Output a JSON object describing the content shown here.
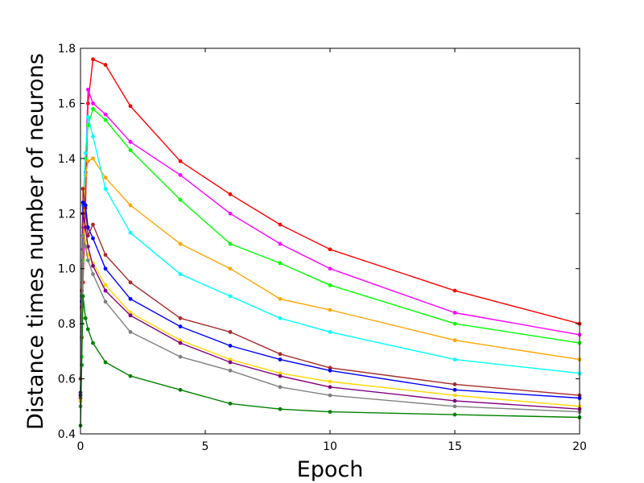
{
  "chart_data": {
    "type": "line",
    "title": "",
    "xlabel": "Epoch",
    "ylabel": "Distance times number of neurons",
    "xlim": [
      0,
      20
    ],
    "ylim": [
      0.4,
      1.8
    ],
    "xticks": [
      0,
      5,
      10,
      15,
      20
    ],
    "xtick_labels": [
      "0",
      "5",
      "10",
      "15",
      "20"
    ],
    "yticks": [
      0.4,
      0.6,
      0.8,
      1.0,
      1.2,
      1.4,
      1.6,
      1.8
    ],
    "ytick_labels": [
      "0.4",
      "0.6",
      "0.8",
      "1.0",
      "1.2",
      "1.4",
      "1.6",
      "1.8"
    ],
    "grid": false,
    "legend": "none",
    "x": [
      0,
      0.05,
      0.1,
      0.2,
      0.3,
      0.5,
      1,
      2,
      4,
      6,
      8,
      10,
      15,
      20
    ],
    "series": [
      {
        "color": "#ff0000",
        "values": [
          0.53,
          0.75,
          0.95,
          1.23,
          1.6,
          1.76,
          1.74,
          1.59,
          1.39,
          1.27,
          1.16,
          1.07,
          0.92,
          0.8
        ]
      },
      {
        "color": "#ff00ff",
        "values": [
          0.52,
          0.8,
          1.07,
          1.35,
          1.65,
          1.6,
          1.56,
          1.46,
          1.34,
          1.2,
          1.09,
          1.0,
          0.84,
          0.76
        ]
      },
      {
        "color": "#00ff00",
        "values": [
          0.5,
          0.68,
          1.03,
          1.4,
          1.52,
          1.58,
          1.54,
          1.43,
          1.25,
          1.09,
          1.02,
          0.94,
          0.8,
          0.73
        ]
      },
      {
        "color": "#ffa500",
        "values": [
          0.52,
          0.82,
          1.15,
          1.34,
          1.39,
          1.4,
          1.33,
          1.23,
          1.09,
          1.0,
          0.89,
          0.85,
          0.74,
          0.67
        ]
      },
      {
        "color": "#00ffff",
        "values": [
          0.55,
          0.9,
          1.23,
          1.42,
          1.55,
          1.48,
          1.29,
          1.13,
          0.98,
          0.9,
          0.82,
          0.77,
          0.67,
          0.62
        ]
      },
      {
        "color": "#a52a2a",
        "values": [
          0.6,
          0.92,
          1.29,
          1.22,
          1.12,
          1.16,
          1.05,
          0.95,
          0.82,
          0.77,
          0.69,
          0.64,
          0.58,
          0.54
        ]
      },
      {
        "color": "#0000ff",
        "values": [
          0.54,
          0.88,
          1.24,
          1.23,
          1.15,
          1.11,
          1.0,
          0.89,
          0.79,
          0.72,
          0.67,
          0.63,
          0.56,
          0.53
        ]
      },
      {
        "color": "#ffd700",
        "values": [
          0.52,
          0.85,
          1.16,
          1.1,
          1.05,
          1.02,
          0.94,
          0.84,
          0.74,
          0.67,
          0.62,
          0.59,
          0.54,
          0.5
        ]
      },
      {
        "color": "#800080",
        "values": [
          0.55,
          0.86,
          1.2,
          1.15,
          1.08,
          1.01,
          0.92,
          0.83,
          0.73,
          0.66,
          0.61,
          0.57,
          0.52,
          0.49
        ]
      },
      {
        "color": "#808080",
        "values": [
          0.5,
          0.8,
          1.12,
          1.08,
          1.03,
          0.98,
          0.88,
          0.77,
          0.68,
          0.63,
          0.57,
          0.54,
          0.5,
          0.48
        ]
      },
      {
        "color": "#008000",
        "values": [
          0.43,
          0.65,
          0.9,
          0.82,
          0.78,
          0.73,
          0.66,
          0.61,
          0.56,
          0.51,
          0.49,
          0.48,
          0.47,
          0.46
        ]
      }
    ]
  }
}
